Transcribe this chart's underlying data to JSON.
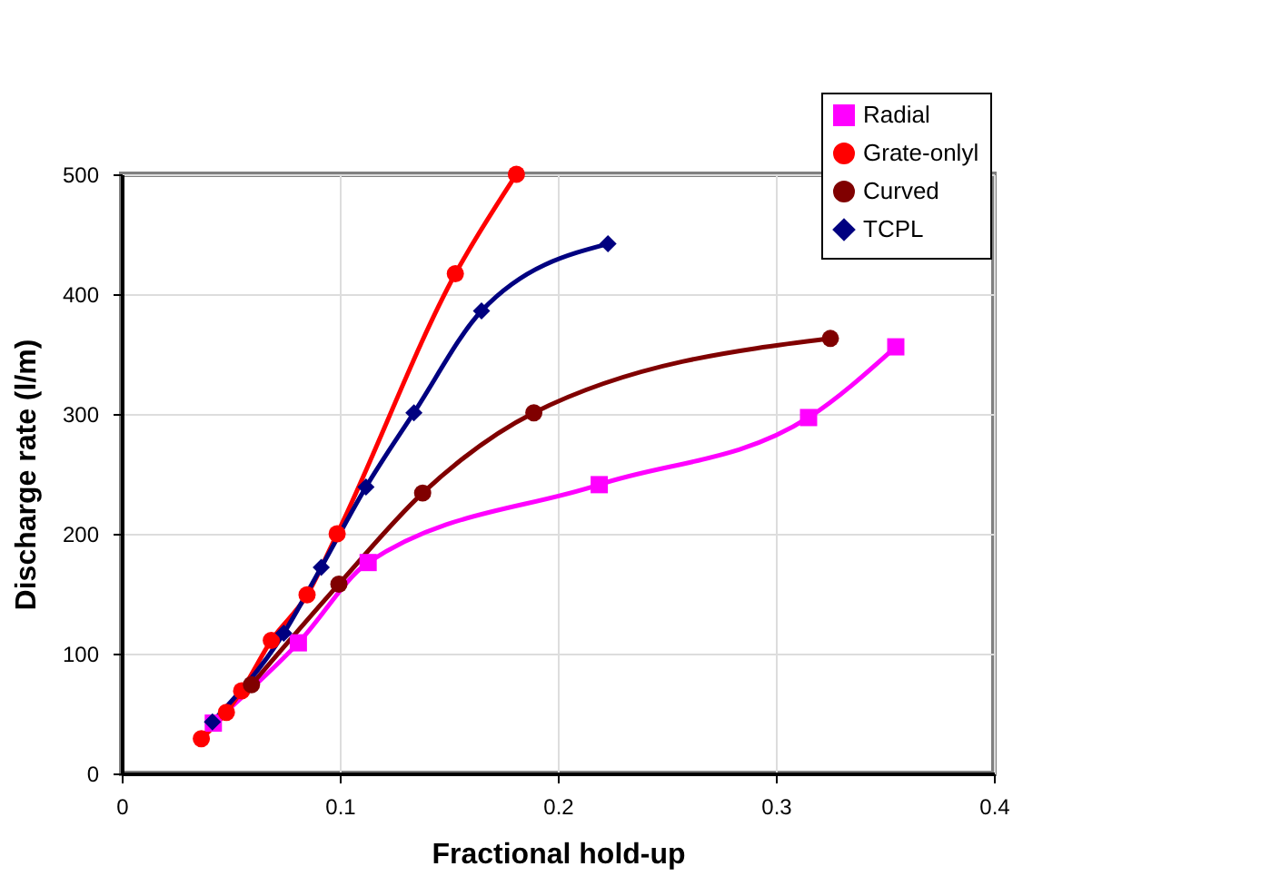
{
  "chart_data": {
    "type": "line",
    "xlabel": "Fractional hold-up",
    "ylabel": "Discharge rate (l/m)",
    "xlim": [
      0,
      0.4
    ],
    "xticks": [
      0,
      0.1,
      0.2,
      0.3,
      0.4
    ],
    "ylim": [
      0,
      500
    ],
    "yticks": [
      0,
      100,
      200,
      300,
      400,
      500
    ],
    "grid": true,
    "legend": "top right",
    "series": [
      {
        "name": "Radial",
        "color": "#ff00ff",
        "marker": "square",
        "x": [
          0.042,
          0.081,
          0.113,
          0.219,
          0.315,
          0.355
        ],
        "values": [
          42,
          109,
          176,
          241,
          297,
          356
        ]
      },
      {
        "name": "Grate-onlyl",
        "color": "#ff0000",
        "marker": "circle",
        "x": [
          0.0365,
          0.048,
          0.055,
          0.0686,
          0.085,
          0.0988,
          0.153,
          0.181
        ],
        "values": [
          29,
          51,
          69,
          111,
          149,
          200,
          417,
          500
        ]
      },
      {
        "name": "Curved",
        "color": "#800000",
        "marker": "circle",
        "x": [
          0.0595,
          0.0996,
          0.138,
          0.189,
          0.325
        ],
        "values": [
          74,
          158,
          234,
          301,
          363
        ]
      },
      {
        "name": "TCPL",
        "color": "#000080",
        "marker": "diamond",
        "x": [
          0.0416,
          0.0743,
          0.0915,
          0.112,
          0.134,
          0.165,
          0.223
        ],
        "values": [
          43,
          117,
          172,
          239,
          301,
          386,
          442
        ]
      }
    ]
  }
}
